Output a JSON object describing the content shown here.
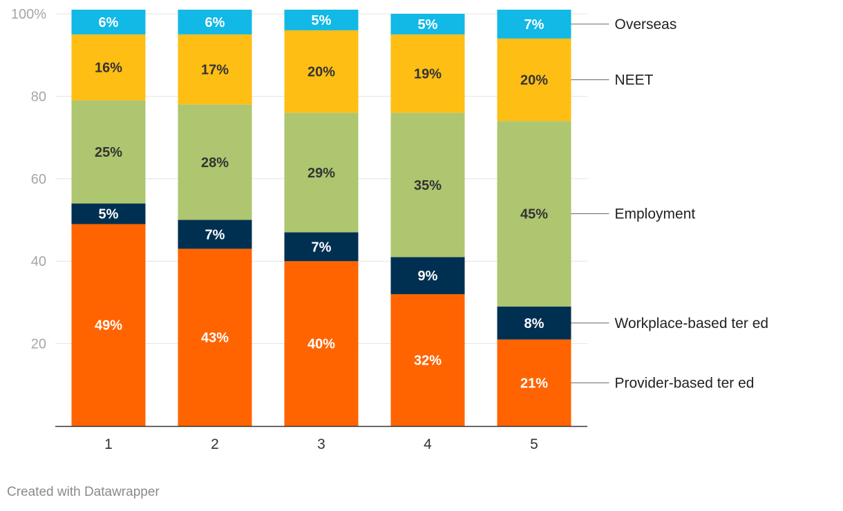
{
  "chart_data": {
    "type": "bar",
    "stacked": true,
    "categories": [
      "1",
      "2",
      "3",
      "4",
      "5"
    ],
    "ylim": [
      0,
      100
    ],
    "yticks": [
      {
        "value": 20,
        "label": "20"
      },
      {
        "value": 40,
        "label": "40"
      },
      {
        "value": 60,
        "label": "60"
      },
      {
        "value": 80,
        "label": "80"
      },
      {
        "value": 100,
        "label": "100%"
      }
    ],
    "grid": true,
    "legend_position": "right",
    "series": [
      {
        "name": "Provider-based ter ed",
        "color": "#ff6400",
        "label_color": "#ffffff",
        "values": [
          49,
          43,
          40,
          32,
          21
        ],
        "labels": [
          "49%",
          "43%",
          "40%",
          "32%",
          "21%"
        ]
      },
      {
        "name": "Workplace-based ter ed",
        "color": "#003051",
        "label_color": "#ffffff",
        "values": [
          5,
          7,
          7,
          9,
          8
        ],
        "labels": [
          "5%",
          "7%",
          "7%",
          "9%",
          "8%"
        ]
      },
      {
        "name": "Employment",
        "color": "#adc66f",
        "label_color": "#333333",
        "values": [
          25,
          28,
          29,
          35,
          45
        ],
        "labels": [
          "25%",
          "28%",
          "29%",
          "35%",
          "45%"
        ]
      },
      {
        "name": "NEET",
        "color": "#febe14",
        "label_color": "#333333",
        "values": [
          16,
          17,
          20,
          19,
          20
        ],
        "labels": [
          "16%",
          "17%",
          "20%",
          "19%",
          "20%"
        ]
      },
      {
        "name": "Overseas",
        "color": "#12b8e6",
        "label_color": "#ffffff",
        "values": [
          6,
          6,
          5,
          5,
          7
        ],
        "labels": [
          "6%",
          "6%",
          "5%",
          "5%",
          "7%"
        ]
      }
    ]
  },
  "footer": {
    "credit": "Created with Datawrapper"
  }
}
